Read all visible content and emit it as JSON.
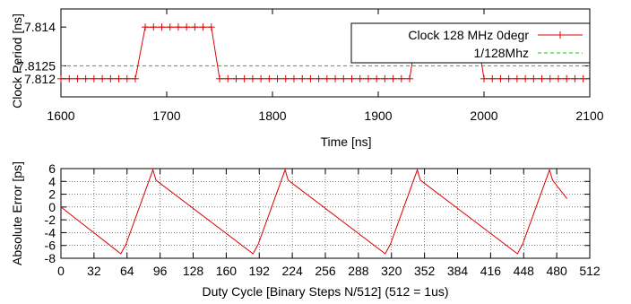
{
  "chart_data": [
    {
      "type": "line",
      "xlabel": "Time [ns]",
      "ylabel": "Clock Period [ns]",
      "xlim": [
        1600,
        2100
      ],
      "ylim": [
        7.8113,
        7.8147
      ],
      "x_ticks": [
        "1600",
        "1700",
        "1800",
        "1900",
        "2000",
        "2100"
      ],
      "y_ticks": [
        {
          "value": 7.812,
          "label": "7.812"
        },
        {
          "value": 7.8125,
          "label": "7.8125"
        },
        {
          "value": 7.814,
          "label": "7.814"
        }
      ],
      "grid": false,
      "legend": "top-right",
      "series": [
        {
          "name": "Clock 128 MHz 0degr",
          "color": "#dd0000",
          "marker": "plus",
          "segments": [
            {
              "x_start": 1600,
              "x_end": 1671.9,
              "step": 7.8125,
              "y": 7.812
            },
            {
              "x_start": 1679.7,
              "x_end": 1742.2,
              "step": 7.8125,
              "y": 7.814
            },
            {
              "x_start": 1750.0,
              "x_end": 1929.7,
              "step": 7.8125,
              "y": 7.812
            },
            {
              "x_start": 1937.5,
              "x_end": 1992.2,
              "step": 7.8125,
              "y": 7.814
            },
            {
              "x_start": 2000.0,
              "x_end": 2100.0,
              "step": 7.8125,
              "y": 7.812
            }
          ]
        },
        {
          "name": "1/128Mhz",
          "color": "#00cc00",
          "style": "dashed",
          "y": 7.8125
        }
      ]
    },
    {
      "type": "line",
      "xlabel": "Duty Cycle [Binary Steps N/512] (512 = 1us)",
      "ylabel": "Absolute Error [ps]",
      "xlim": [
        0,
        512
      ],
      "ylim": [
        -8,
        6
      ],
      "x_ticks": [
        0,
        32,
        64,
        96,
        128,
        160,
        192,
        224,
        256,
        288,
        320,
        352,
        384,
        416,
        448,
        480,
        512
      ],
      "y_ticks": [
        -8,
        -6,
        -4,
        -2,
        0,
        2,
        4,
        6
      ],
      "grid": true,
      "series": [
        {
          "color": "#dd0000",
          "x": [
            0,
            58,
            63,
            89,
            92,
            186,
            191,
            217,
            220,
            314,
            319,
            345,
            348,
            442,
            447,
            473,
            476,
            490
          ],
          "y": [
            0,
            -7.3,
            -5.8,
            5.8,
            4.2,
            -7.3,
            -5.8,
            5.8,
            4.2,
            -7.3,
            -5.8,
            5.8,
            4.2,
            -7.3,
            -5.8,
            5.8,
            4.2,
            1.3
          ]
        }
      ]
    }
  ]
}
